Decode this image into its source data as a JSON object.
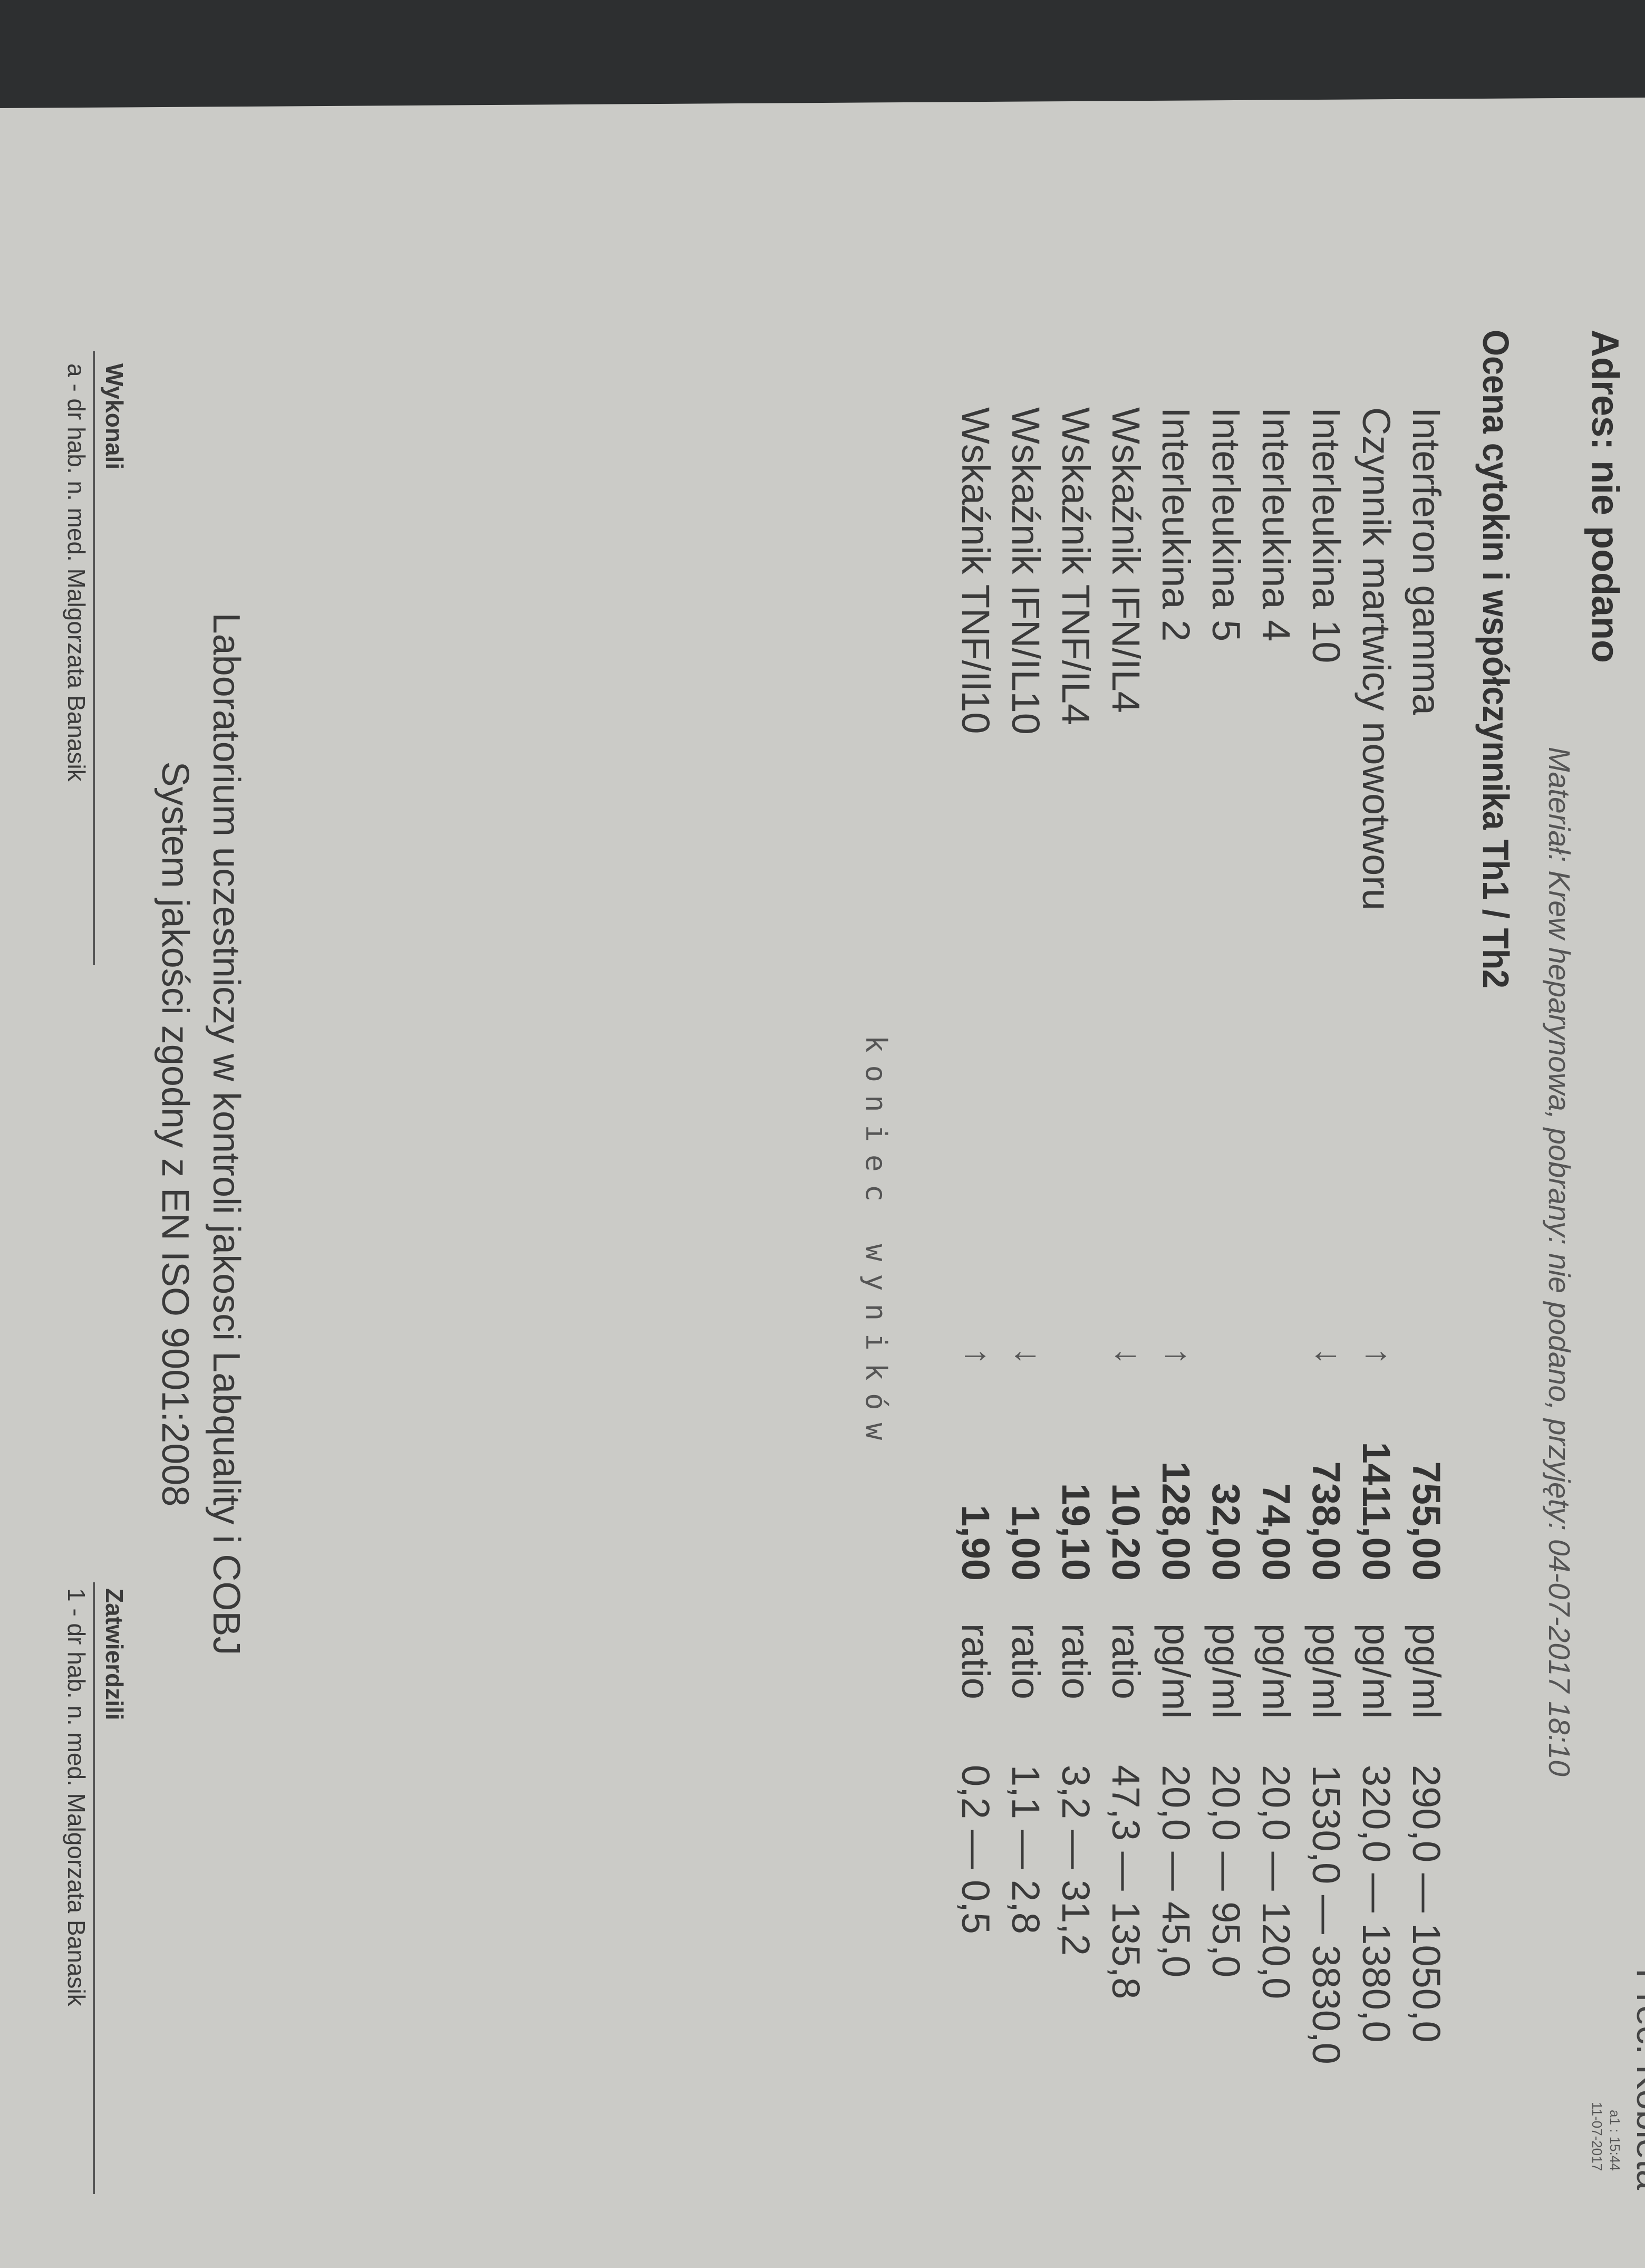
{
  "header": {
    "corner_text": "Prec. Kobieta",
    "address": "Adres: nie podano",
    "material": "Materiał: Krew heparynowa, pobrany: nie podano, przyjęty: 04-07-2017 18:10",
    "stamp_line1": "a1 : 15:44",
    "stamp_line2": "11-07-2017"
  },
  "section": {
    "title": "Ocena cytokin i współczynnika Th1 / Th2",
    "rows": [
      {
        "label": "Interferon gamma",
        "flag": "",
        "value": "755,00",
        "unit": "pg/ml",
        "range": "290,0 — 1050,0"
      },
      {
        "label": "Czynnik martwicy nowotworu",
        "flag": "↑",
        "value": "1411,00",
        "unit": "pg/ml",
        "range": "320,0 — 1380,0"
      },
      {
        "label": "Interleukina 10",
        "flag": "↓",
        "value": "738,00",
        "unit": "pg/ml",
        "range": "1530,0 — 3830,0"
      },
      {
        "label": "Interleukina 4",
        "flag": "",
        "value": "74,00",
        "unit": "pg/ml",
        "range": "20,0 — 120,0"
      },
      {
        "label": "Interleukina 5",
        "flag": "",
        "value": "32,00",
        "unit": "pg/ml",
        "range": "20,0 — 95,0"
      },
      {
        "label": "Interleukina 2",
        "flag": "↑",
        "value": "128,00",
        "unit": "pg/ml",
        "range": "20,0 — 45,0"
      },
      {
        "label": "Wskaźnik IFN/IL4",
        "flag": "↓",
        "value": "10,20",
        "unit": "ratio",
        "range": "47,3 — 135,8"
      },
      {
        "label": "Wskaźnik TNF/IL4",
        "flag": "",
        "value": "19,10",
        "unit": "ratio",
        "range": "3,2 — 31,2"
      },
      {
        "label": "Wskaźnik IFN/IL10",
        "flag": "↓",
        "value": "1,00",
        "unit": "ratio",
        "range": "1,1 — 2,8"
      },
      {
        "label": "Wskaźnik TNF/Il10",
        "flag": "↑",
        "value": "1,90",
        "unit": "ratio",
        "range": "0,2 — 0,5"
      }
    ],
    "end_marker": "koniec wyników"
  },
  "footer": {
    "lab_line1": "Laboratorium uczestniczy w kontroli jakosci Labquality i COBJ",
    "lab_line2": "System jakości zgodny z EN ISO 9001:2008",
    "performed_label": "Wykonali",
    "performed_by": "a - dr hab. n. med. Malgorzata Banasik",
    "approved_label": "Zatwierdzili",
    "approved_by": "1 - dr hab. n. med. Malgorzata Banasik"
  },
  "colors": {
    "paper": "#cbcbc7",
    "background": "#2d2f30",
    "ink": "#3a3a3a"
  }
}
